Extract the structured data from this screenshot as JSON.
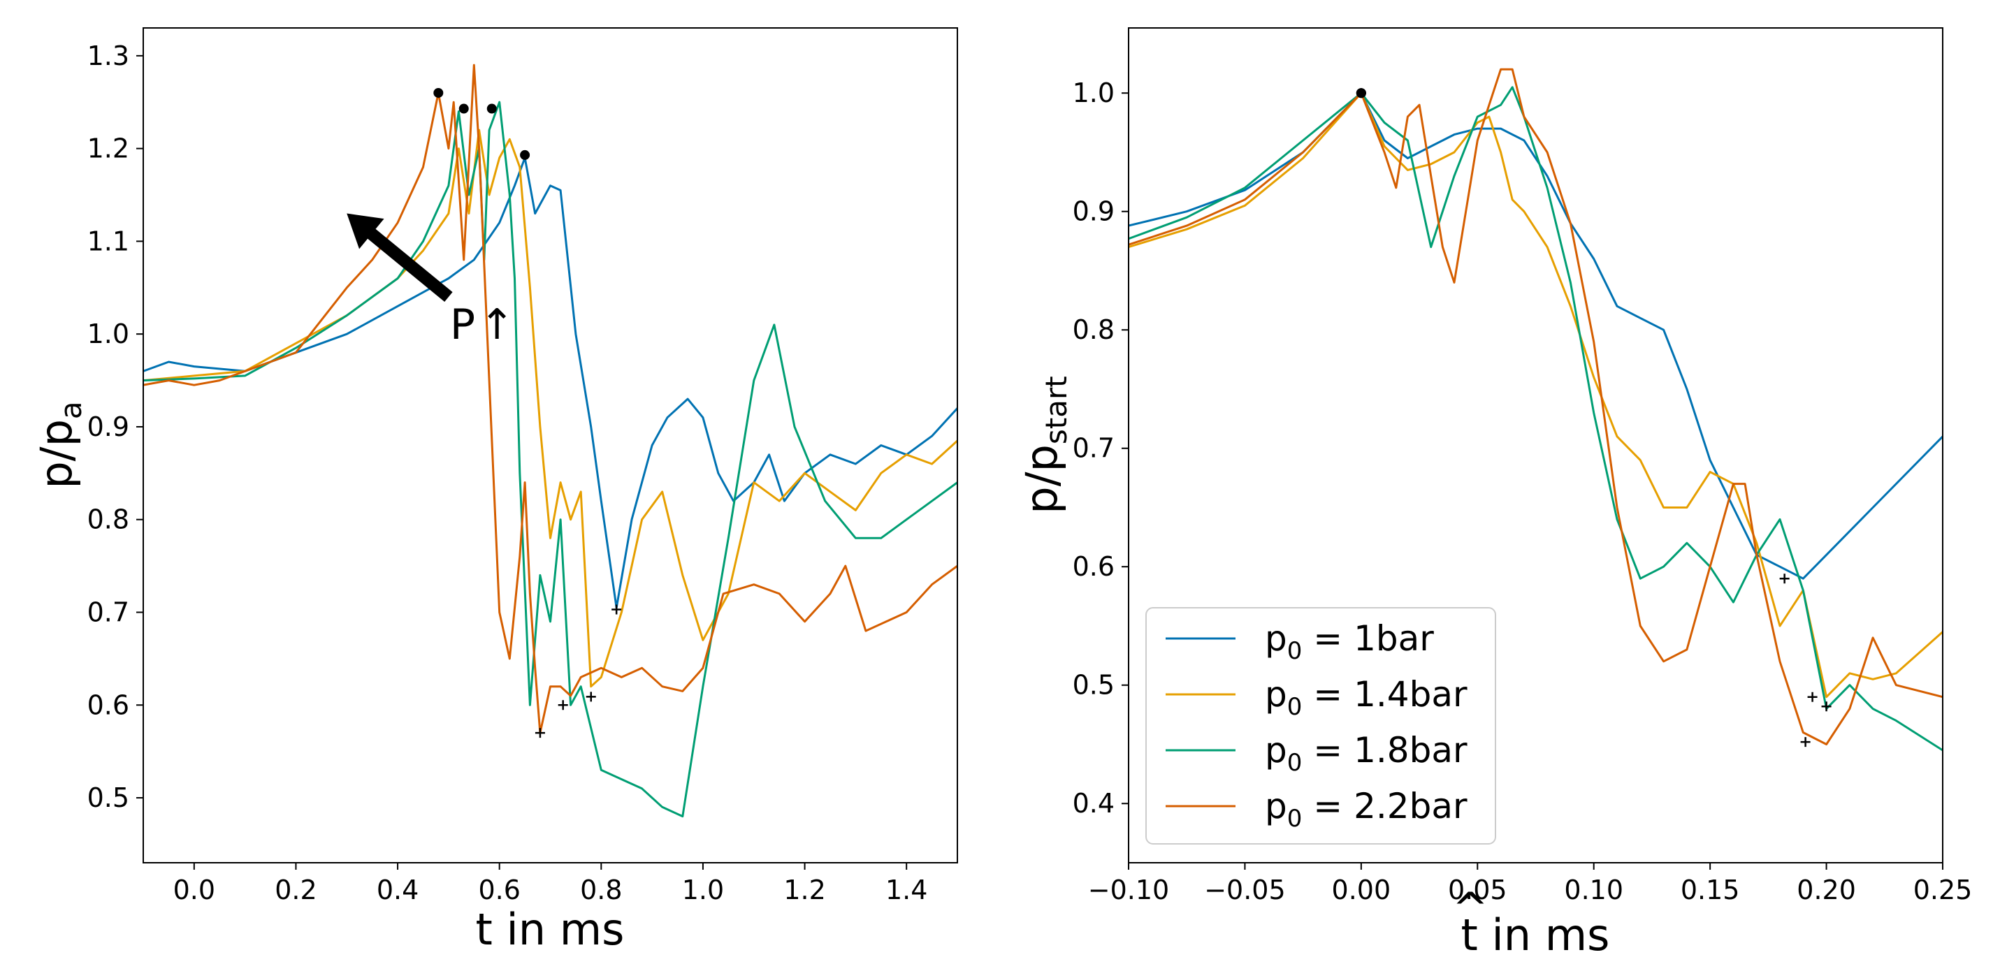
{
  "chart_data": [
    {
      "type": "line",
      "xlabel": "t in ms",
      "ylabel": {
        "base": "p/p",
        "sub": "a"
      },
      "xlim": [
        -0.1,
        1.5
      ],
      "ylim": [
        0.43,
        1.33
      ],
      "xticks": [
        0.0,
        0.2,
        0.4,
        0.6,
        0.8,
        1.0,
        1.2,
        1.4
      ],
      "xtick_labels": [
        "0.0",
        "0.2",
        "0.4",
        "0.6",
        "0.8",
        "1.0",
        "1.2",
        "1.4"
      ],
      "yticks": [
        0.5,
        0.6,
        0.7,
        0.8,
        0.9,
        1.0,
        1.1,
        1.2,
        1.3
      ],
      "ytick_labels": [
        "0.5",
        "0.6",
        "0.7",
        "0.8",
        "0.9",
        "1.0",
        "1.1",
        "1.2",
        "1.3"
      ],
      "annotation": {
        "text": "P",
        "glyph": "↑",
        "arrow_from": [
          0.5,
          1.04
        ],
        "arrow_to": [
          0.3,
          1.13
        ]
      },
      "series": [
        {
          "name": "p0 = 1bar",
          "color": "#0072B2",
          "x": [
            -0.1,
            -0.05,
            0.0,
            0.1,
            0.2,
            0.3,
            0.4,
            0.5,
            0.55,
            0.6,
            0.63,
            0.65,
            0.67,
            0.7,
            0.72,
            0.75,
            0.78,
            0.8,
            0.83,
            0.86,
            0.9,
            0.93,
            0.97,
            1.0,
            1.03,
            1.06,
            1.1,
            1.13,
            1.16,
            1.2,
            1.25,
            1.3,
            1.35,
            1.4,
            1.45,
            1.5
          ],
          "y": [
            0.96,
            0.97,
            0.965,
            0.96,
            0.98,
            1.0,
            1.03,
            1.06,
            1.08,
            1.12,
            1.16,
            1.19,
            1.13,
            1.16,
            1.155,
            1.0,
            0.9,
            0.82,
            0.705,
            0.8,
            0.88,
            0.91,
            0.93,
            0.91,
            0.85,
            0.82,
            0.84,
            0.87,
            0.82,
            0.85,
            0.87,
            0.86,
            0.88,
            0.87,
            0.89,
            0.92
          ],
          "peak": [
            0.65,
            1.193
          ],
          "min": [
            0.83,
            0.703
          ]
        },
        {
          "name": "p0 = 1.4bar",
          "color": "#E69F00",
          "x": [
            -0.1,
            0.0,
            0.1,
            0.2,
            0.3,
            0.4,
            0.45,
            0.5,
            0.52,
            0.54,
            0.56,
            0.58,
            0.6,
            0.62,
            0.64,
            0.66,
            0.68,
            0.7,
            0.72,
            0.74,
            0.76,
            0.78,
            0.8,
            0.84,
            0.88,
            0.92,
            0.96,
            1.0,
            1.05,
            1.1,
            1.15,
            1.2,
            1.25,
            1.3,
            1.35,
            1.4,
            1.45,
            1.5
          ],
          "y": [
            0.95,
            0.955,
            0.96,
            0.99,
            1.02,
            1.06,
            1.09,
            1.13,
            1.2,
            1.13,
            1.22,
            1.15,
            1.19,
            1.21,
            1.18,
            1.05,
            0.9,
            0.78,
            0.84,
            0.8,
            0.83,
            0.62,
            0.63,
            0.7,
            0.8,
            0.83,
            0.74,
            0.67,
            0.72,
            0.84,
            0.82,
            0.85,
            0.83,
            0.81,
            0.85,
            0.87,
            0.86,
            0.885
          ],
          "peak": [
            0.585,
            1.243
          ],
          "min": [
            0.78,
            0.609
          ]
        },
        {
          "name": "p0 = 1.8bar",
          "color": "#009E73",
          "x": [
            -0.1,
            0.0,
            0.1,
            0.2,
            0.3,
            0.4,
            0.45,
            0.5,
            0.52,
            0.54,
            0.56,
            0.57,
            0.58,
            0.6,
            0.62,
            0.63,
            0.64,
            0.66,
            0.68,
            0.7,
            0.72,
            0.74,
            0.76,
            0.8,
            0.84,
            0.88,
            0.92,
            0.96,
            1.0,
            1.05,
            1.1,
            1.14,
            1.18,
            1.24,
            1.3,
            1.35,
            1.4,
            1.45,
            1.5
          ],
          "y": [
            0.95,
            0.952,
            0.955,
            0.985,
            1.02,
            1.06,
            1.1,
            1.16,
            1.24,
            1.15,
            1.2,
            1.08,
            1.22,
            1.25,
            1.15,
            1.06,
            0.85,
            0.6,
            0.74,
            0.69,
            0.8,
            0.6,
            0.62,
            0.53,
            0.52,
            0.51,
            0.49,
            0.48,
            0.62,
            0.78,
            0.95,
            1.01,
            0.9,
            0.82,
            0.78,
            0.78,
            0.8,
            0.82,
            0.84
          ],
          "peak": [
            0.53,
            1.243
          ],
          "min": [
            0.725,
            0.6
          ]
        },
        {
          "name": "p0 = 2.2bar",
          "color": "#D55E00",
          "x": [
            -0.1,
            -0.05,
            0.0,
            0.05,
            0.1,
            0.2,
            0.3,
            0.35,
            0.4,
            0.45,
            0.48,
            0.5,
            0.51,
            0.53,
            0.55,
            0.56,
            0.58,
            0.6,
            0.62,
            0.64,
            0.65,
            0.66,
            0.67,
            0.68,
            0.7,
            0.72,
            0.74,
            0.76,
            0.8,
            0.84,
            0.88,
            0.92,
            0.96,
            1.0,
            1.04,
            1.1,
            1.15,
            1.2,
            1.25,
            1.28,
            1.32,
            1.36,
            1.4,
            1.45,
            1.5
          ],
          "y": [
            0.945,
            0.95,
            0.945,
            0.95,
            0.96,
            0.98,
            1.05,
            1.08,
            1.12,
            1.18,
            1.26,
            1.2,
            1.25,
            1.08,
            1.29,
            1.2,
            0.95,
            0.7,
            0.65,
            0.76,
            0.84,
            0.72,
            0.64,
            0.57,
            0.62,
            0.62,
            0.61,
            0.63,
            0.64,
            0.63,
            0.64,
            0.62,
            0.615,
            0.64,
            0.72,
            0.73,
            0.72,
            0.69,
            0.72,
            0.75,
            0.68,
            0.69,
            0.7,
            0.73,
            0.75
          ],
          "peak": [
            0.48,
            1.26
          ],
          "min": [
            0.68,
            0.57
          ]
        }
      ]
    },
    {
      "type": "line",
      "xlabel": {
        "base": "t",
        "accent": "^",
        "rest": " in ms"
      },
      "ylabel": {
        "base": "p/p",
        "sub": "start"
      },
      "xlim": [
        -0.1,
        0.25
      ],
      "ylim": [
        0.35,
        1.055
      ],
      "xticks": [
        -0.1,
        -0.05,
        0.0,
        0.05,
        0.1,
        0.15,
        0.2,
        0.25
      ],
      "xtick_labels": [
        "−0.10",
        "−0.05",
        "0.00",
        "0.05",
        "0.10",
        "0.15",
        "0.20",
        "0.25"
      ],
      "yticks": [
        0.4,
        0.5,
        0.6,
        0.7,
        0.8,
        0.9,
        1.0
      ],
      "ytick_labels": [
        "0.4",
        "0.5",
        "0.6",
        "0.7",
        "0.8",
        "0.9",
        "1.0"
      ],
      "legend": {
        "position": "lower-left",
        "entries": [
          {
            "label_base": "p",
            "label_sub": "0",
            "label_rest": " = 1bar",
            "color": "#0072B2"
          },
          {
            "label_base": "p",
            "label_sub": "0",
            "label_rest": " = 1.4bar",
            "color": "#E69F00"
          },
          {
            "label_base": "p",
            "label_sub": "0",
            "label_rest": " = 1.8bar",
            "color": "#009E73"
          },
          {
            "label_base": "p",
            "label_sub": "0",
            "label_rest": " = 2.2bar",
            "color": "#D55E00"
          }
        ]
      },
      "series": [
        {
          "name": "p0 = 1bar",
          "color": "#0072B2",
          "x": [
            -0.1,
            -0.075,
            -0.05,
            -0.025,
            0.0,
            0.01,
            0.02,
            0.03,
            0.04,
            0.05,
            0.06,
            0.07,
            0.08,
            0.09,
            0.1,
            0.11,
            0.12,
            0.13,
            0.14,
            0.15,
            0.16,
            0.17,
            0.18,
            0.19,
            0.2,
            0.22,
            0.25
          ],
          "y": [
            0.888,
            0.9,
            0.918,
            0.95,
            1.0,
            0.96,
            0.945,
            0.955,
            0.965,
            0.97,
            0.97,
            0.96,
            0.93,
            0.89,
            0.86,
            0.82,
            0.81,
            0.8,
            0.75,
            0.69,
            0.65,
            0.61,
            0.6,
            0.59,
            0.61,
            0.65,
            0.71
          ],
          "peak": [
            0.0,
            1.0
          ],
          "min": [
            0.182,
            0.59
          ]
        },
        {
          "name": "p0 = 1.4bar",
          "color": "#E69F00",
          "x": [
            -0.1,
            -0.075,
            -0.05,
            -0.025,
            0.0,
            0.01,
            0.02,
            0.03,
            0.04,
            0.05,
            0.055,
            0.06,
            0.065,
            0.07,
            0.08,
            0.09,
            0.1,
            0.11,
            0.12,
            0.13,
            0.14,
            0.15,
            0.16,
            0.17,
            0.18,
            0.19,
            0.2,
            0.21,
            0.22,
            0.23,
            0.25
          ],
          "y": [
            0.87,
            0.885,
            0.905,
            0.945,
            1.0,
            0.955,
            0.935,
            0.94,
            0.95,
            0.975,
            0.98,
            0.95,
            0.91,
            0.9,
            0.87,
            0.82,
            0.76,
            0.71,
            0.69,
            0.65,
            0.65,
            0.68,
            0.67,
            0.62,
            0.55,
            0.58,
            0.49,
            0.51,
            0.505,
            0.51,
            0.545
          ],
          "peak": [
            0.0,
            1.0
          ],
          "min": [
            0.194,
            0.49
          ]
        },
        {
          "name": "p0 = 1.8bar",
          "color": "#009E73",
          "x": [
            -0.1,
            -0.075,
            -0.05,
            -0.025,
            0.0,
            0.01,
            0.02,
            0.03,
            0.04,
            0.05,
            0.06,
            0.065,
            0.07,
            0.08,
            0.09,
            0.1,
            0.11,
            0.12,
            0.13,
            0.14,
            0.15,
            0.16,
            0.17,
            0.18,
            0.19,
            0.2,
            0.21,
            0.22,
            0.23,
            0.25
          ],
          "y": [
            0.877,
            0.895,
            0.92,
            0.96,
            1.0,
            0.975,
            0.96,
            0.87,
            0.93,
            0.98,
            0.99,
            1.005,
            0.98,
            0.92,
            0.84,
            0.73,
            0.64,
            0.59,
            0.6,
            0.62,
            0.6,
            0.57,
            0.61,
            0.64,
            0.58,
            0.48,
            0.5,
            0.48,
            0.47,
            0.445
          ],
          "peak": [
            0.0,
            1.0
          ],
          "min": [
            0.2,
            0.482
          ]
        },
        {
          "name": "p0 = 2.2bar",
          "color": "#D55E00",
          "x": [
            -0.1,
            -0.075,
            -0.05,
            -0.025,
            0.0,
            0.01,
            0.015,
            0.02,
            0.025,
            0.03,
            0.035,
            0.04,
            0.05,
            0.06,
            0.065,
            0.07,
            0.08,
            0.09,
            0.1,
            0.11,
            0.12,
            0.13,
            0.14,
            0.15,
            0.16,
            0.165,
            0.17,
            0.18,
            0.19,
            0.2,
            0.21,
            0.22,
            0.23,
            0.25
          ],
          "y": [
            0.872,
            0.888,
            0.91,
            0.95,
            1.0,
            0.95,
            0.92,
            0.98,
            0.99,
            0.93,
            0.87,
            0.84,
            0.96,
            1.02,
            1.02,
            0.98,
            0.95,
            0.89,
            0.79,
            0.65,
            0.55,
            0.52,
            0.53,
            0.6,
            0.67,
            0.67,
            0.61,
            0.52,
            0.46,
            0.45,
            0.48,
            0.54,
            0.5,
            0.49
          ],
          "peak": [
            0.0,
            1.0
          ],
          "min": [
            0.191,
            0.452
          ]
        }
      ]
    }
  ]
}
